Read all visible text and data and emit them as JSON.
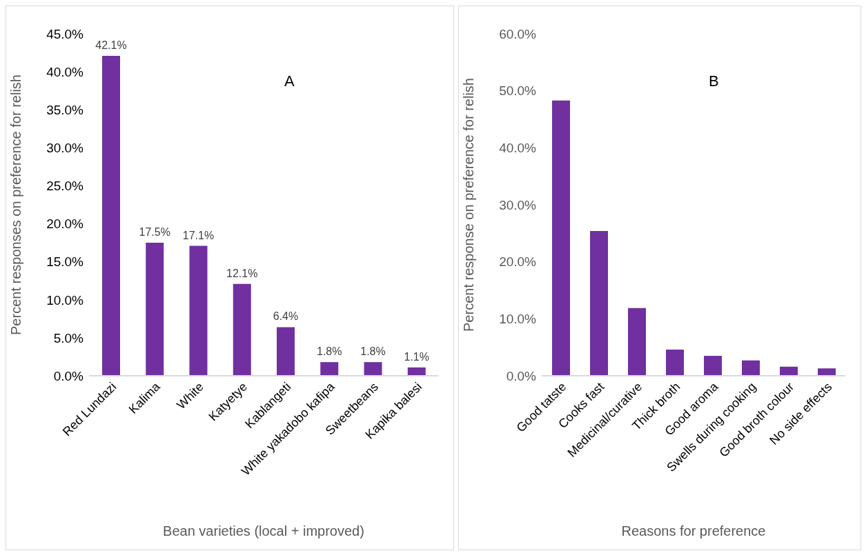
{
  "chart_data": [
    {
      "type": "bar",
      "title": "A",
      "xlabel": "Bean varieties (local + improved)",
      "ylabel": "Percent responses on preference for relish",
      "categories": [
        "Red Lundazi",
        "Kalima",
        "White",
        "Katyetye",
        "Kablangeti",
        "White yakadobo kafipa",
        "Sweetbeans",
        "Kapika balesi"
      ],
      "values": [
        42.1,
        17.5,
        17.1,
        12.1,
        6.4,
        1.8,
        1.8,
        1.1
      ],
      "color": "#7030a0",
      "value_labels": [
        "42.1%",
        "17.5%",
        "17.1%",
        "12.1%",
        "6.4%",
        "1.8%",
        "1.8%",
        "1.1%"
      ],
      "ylim": [
        0,
        45
      ],
      "yticks": [
        {
          "value": 0,
          "label": "0.0%"
        },
        {
          "value": 5,
          "label": "5.0%"
        },
        {
          "value": 10,
          "label": "10.0%"
        },
        {
          "value": 15,
          "label": "15.0%"
        },
        {
          "value": 20,
          "label": "20.0%"
        },
        {
          "value": 25,
          "label": "25.0%"
        },
        {
          "value": 30,
          "label": "30.0%"
        },
        {
          "value": 35,
          "label": "35.0%"
        },
        {
          "value": 40,
          "label": "40.0%"
        },
        {
          "value": 45,
          "label": "45.0%"
        }
      ],
      "grid": false,
      "legend": false
    },
    {
      "type": "bar",
      "title": "B",
      "xlabel": "Reasons for preference",
      "ylabel": "Percent response on preference for relish",
      "categories": [
        "Good tatste",
        "Cooks fast",
        "Medicinal/curative",
        "Thick broth",
        "Good aroma",
        "Swells during cooking",
        "Good broth colour",
        "No side effects"
      ],
      "values": [
        48.3,
        25.4,
        11.9,
        4.6,
        3.5,
        2.7,
        1.6,
        1.3
      ],
      "color": "#7030a0",
      "ylim": [
        0,
        60
      ],
      "yticks": [
        {
          "value": 0,
          "label": "0.0%"
        },
        {
          "value": 10,
          "label": "10.0%"
        },
        {
          "value": 20,
          "label": "20.0%"
        },
        {
          "value": 30,
          "label": "30.0%"
        },
        {
          "value": 40,
          "label": "40.0%"
        },
        {
          "value": 50,
          "label": "50.0%"
        },
        {
          "value": 60,
          "label": "60.0%"
        }
      ],
      "grid": false,
      "legend": false
    }
  ]
}
